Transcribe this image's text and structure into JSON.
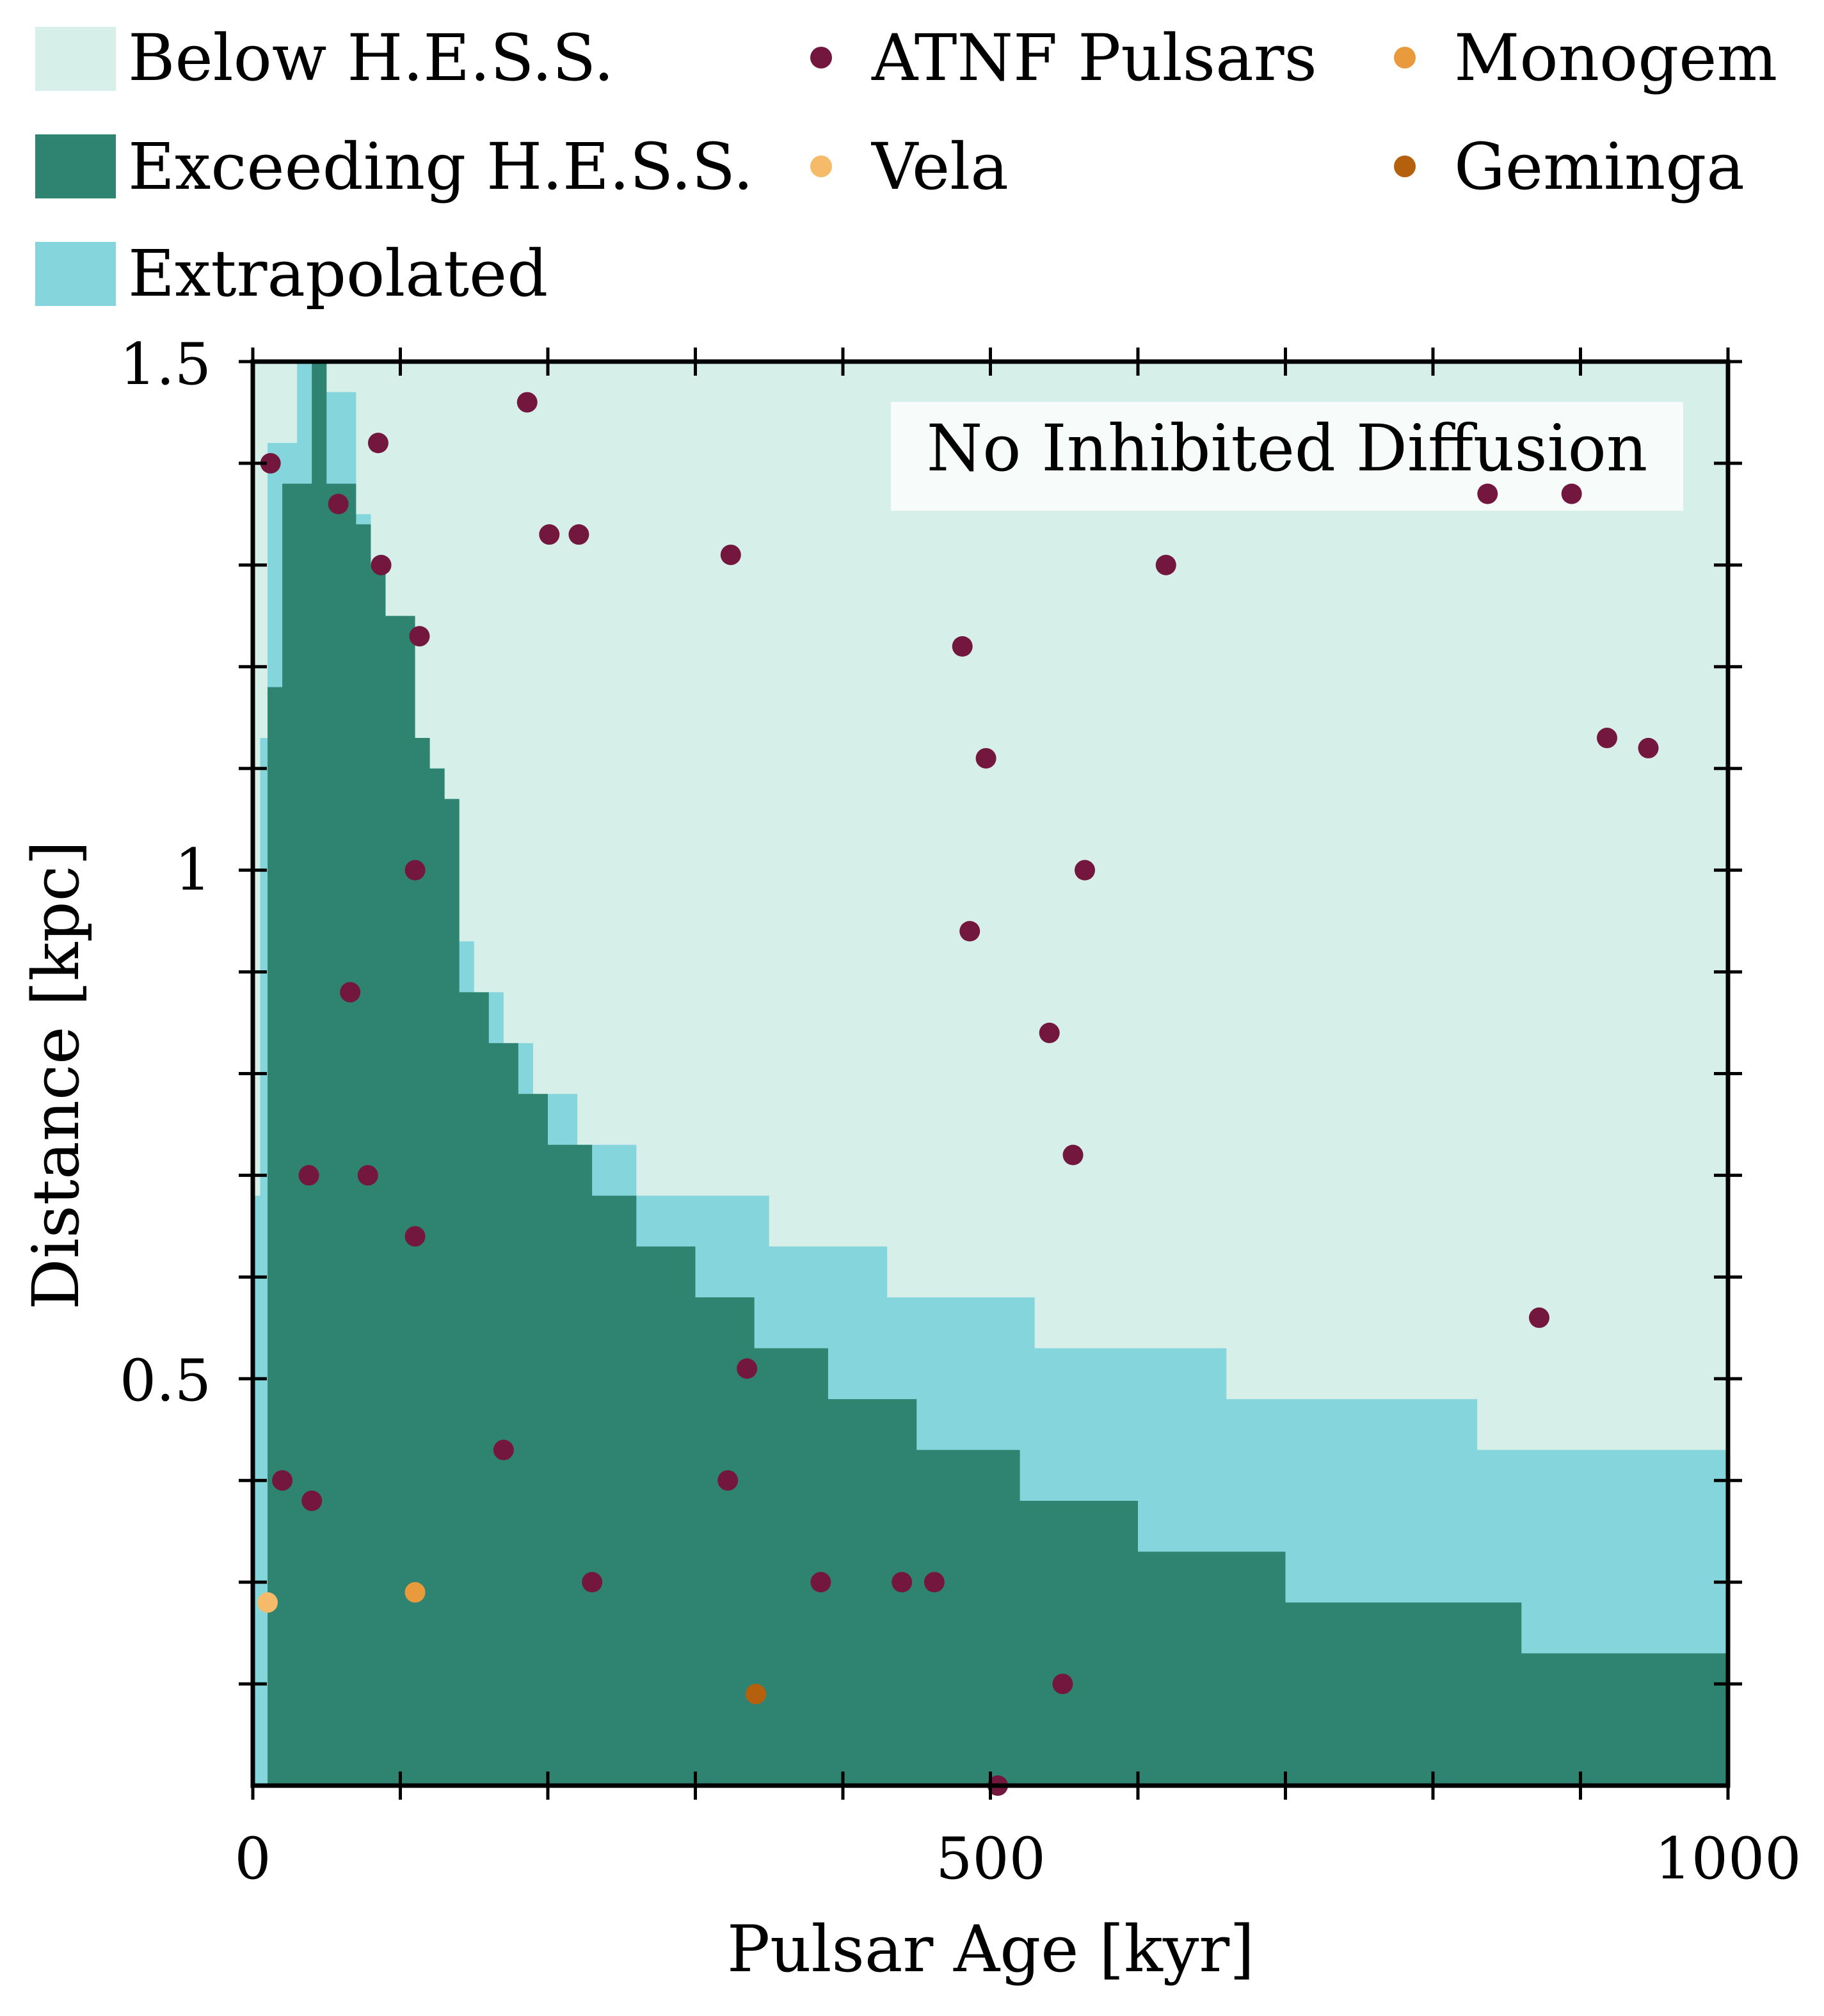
{
  "chart_data": {
    "type": "scatter",
    "title": "",
    "xlabel": "Pulsar Age [kyr]",
    "ylabel": "Distance [kpc]",
    "xlim": [
      0,
      1000
    ],
    "ylim": [
      0.1,
      1.5
    ],
    "x_ticks": [
      0,
      500,
      1000
    ],
    "x_tick_labels": [
      "0",
      "500",
      "1000"
    ],
    "y_ticks": [
      0.5,
      1.0,
      1.5
    ],
    "y_tick_labels": [
      "0.5",
      "1",
      "1.5"
    ],
    "annotation": "No Inhibited Diffusion",
    "legend": {
      "below": "Below H.E.S.S.",
      "exceeding": "Exceeding H.E.S.S.",
      "extrapolated": "Extrapolated",
      "atnf": "ATNF Pulsars",
      "vela": "Vela",
      "monogem": "Monogem",
      "geminga": "Geminga"
    },
    "colors": {
      "below": "#d6efe8",
      "exceeding": "#2e8470",
      "extrapolated": "#85d5dc",
      "atnf": "#73173f",
      "vela": "#f6bb6a",
      "monogem": "#e89a3c",
      "geminga": "#b5600d"
    },
    "regions": {
      "extrapolated_upper_boundary": [
        [
          0,
          0.68
        ],
        [
          5,
          1.13
        ],
        [
          10,
          1.42
        ],
        [
          20,
          1.42
        ],
        [
          30,
          1.5
        ],
        [
          40,
          1.5
        ],
        [
          50,
          1.47
        ],
        [
          60,
          1.47
        ],
        [
          70,
          1.35
        ],
        [
          80,
          1.3
        ],
        [
          90,
          1.25
        ],
        [
          100,
          1.22
        ],
        [
          110,
          1.12
        ],
        [
          120,
          1.1
        ],
        [
          130,
          1.07
        ],
        [
          140,
          0.93
        ],
        [
          150,
          0.88
        ],
        [
          170,
          0.83
        ],
        [
          190,
          0.78
        ],
        [
          220,
          0.73
        ],
        [
          260,
          0.68
        ],
        [
          280,
          0.68
        ],
        [
          350,
          0.63
        ],
        [
          430,
          0.58
        ],
        [
          530,
          0.53
        ],
        [
          660,
          0.48
        ],
        [
          830,
          0.43
        ],
        [
          1000,
          0.43
        ]
      ],
      "exceeding_upper_boundary": [
        [
          0,
          0.1
        ],
        [
          10,
          1.18
        ],
        [
          20,
          1.38
        ],
        [
          30,
          1.38
        ],
        [
          40,
          1.5
        ],
        [
          50,
          1.38
        ],
        [
          60,
          1.38
        ],
        [
          70,
          1.34
        ],
        [
          80,
          1.3
        ],
        [
          90,
          1.25
        ],
        [
          110,
          1.13
        ],
        [
          120,
          1.1
        ],
        [
          130,
          1.07
        ],
        [
          140,
          0.88
        ],
        [
          160,
          0.83
        ],
        [
          180,
          0.78
        ],
        [
          200,
          0.73
        ],
        [
          230,
          0.68
        ],
        [
          260,
          0.63
        ],
        [
          300,
          0.58
        ],
        [
          340,
          0.53
        ],
        [
          390,
          0.48
        ],
        [
          450,
          0.43
        ],
        [
          520,
          0.38
        ],
        [
          600,
          0.33
        ],
        [
          700,
          0.28
        ],
        [
          860,
          0.23
        ],
        [
          1000,
          0.23
        ]
      ]
    },
    "series": [
      {
        "name": "ATNF Pulsars",
        "points": [
          [
            12,
            1.4
          ],
          [
            85,
            1.42
          ],
          [
            186,
            1.46
          ],
          [
            58,
            1.36
          ],
          [
            87,
            1.3
          ],
          [
            201,
            1.33
          ],
          [
            221,
            1.33
          ],
          [
            324,
            1.31
          ],
          [
            619,
            1.3
          ],
          [
            113,
            1.23
          ],
          [
            481,
            1.22
          ],
          [
            497,
            1.11
          ],
          [
            918,
            1.13
          ],
          [
            946,
            1.12
          ],
          [
            110,
            1.0
          ],
          [
            564,
            1.0
          ],
          [
            486,
            0.94
          ],
          [
            66,
            0.88
          ],
          [
            540,
            0.84
          ],
          [
            556,
            0.72
          ],
          [
            38,
            0.7
          ],
          [
            78,
            0.7
          ],
          [
            110,
            0.64
          ],
          [
            872,
            0.56
          ],
          [
            335,
            0.51
          ],
          [
            170,
            0.43
          ],
          [
            20,
            0.4
          ],
          [
            40,
            0.38
          ],
          [
            322,
            0.4
          ],
          [
            230,
            0.3
          ],
          [
            385,
            0.3
          ],
          [
            440,
            0.3
          ],
          [
            462,
            0.3
          ],
          [
            549,
            0.2
          ],
          [
            505,
            0.1
          ],
          [
            837,
            1.37
          ],
          [
            894,
            1.37
          ]
        ]
      },
      {
        "name": "Vela",
        "points": [
          [
            10,
            0.28
          ]
        ]
      },
      {
        "name": "Monogem",
        "points": [
          [
            110,
            0.29
          ]
        ]
      },
      {
        "name": "Geminga",
        "points": [
          [
            341,
            0.19
          ]
        ]
      }
    ]
  }
}
